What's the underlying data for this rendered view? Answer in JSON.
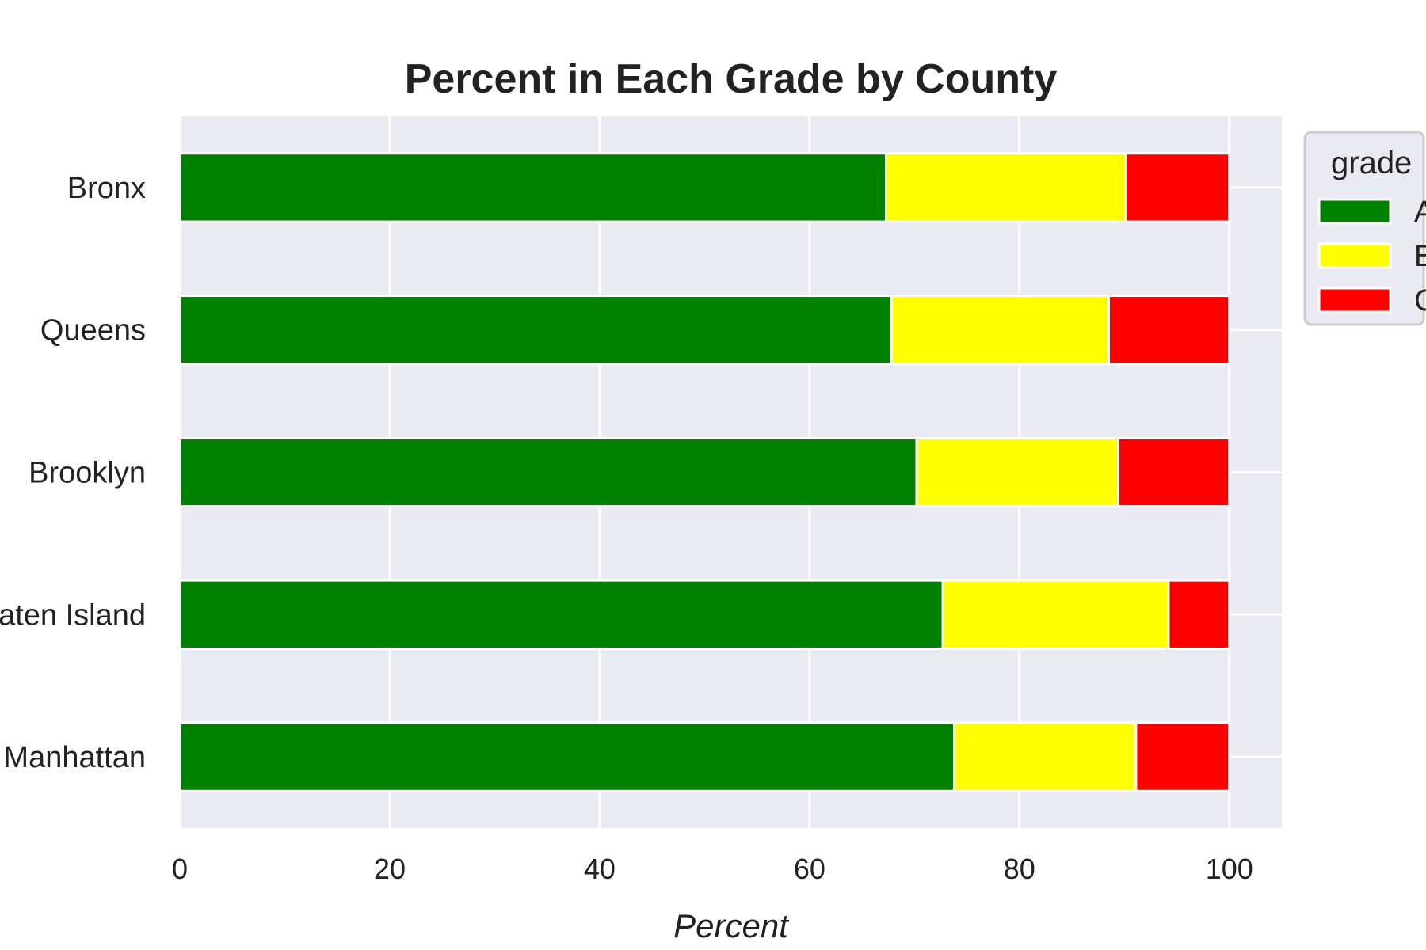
{
  "chart_data": {
    "type": "bar",
    "orientation": "horizontal",
    "stacked": true,
    "title": "Percent in Each Grade by County",
    "xlabel": "Percent",
    "ylabel": "",
    "xlim": [
      0,
      105
    ],
    "xticks": [
      "0",
      "20",
      "40",
      "60",
      "80",
      "100"
    ],
    "grid": true,
    "categories": [
      "Bronx",
      "Queens",
      "Brooklyn",
      "Staten Island",
      "Manhattan"
    ],
    "legend": {
      "title": "grade",
      "placement": "upper-right-outside"
    },
    "series": [
      {
        "name": "A",
        "color": "#008000",
        "values": [
          67.3,
          67.8,
          70.2,
          72.7,
          73.8
        ]
      },
      {
        "name": "B",
        "color": "#ffff00",
        "values": [
          22.8,
          20.7,
          19.2,
          21.5,
          17.3
        ]
      },
      {
        "name": "C",
        "color": "#ff0000",
        "values": [
          9.9,
          11.5,
          10.6,
          5.8,
          8.9
        ]
      }
    ]
  },
  "colors": {
    "plot_background": "#eaeaf2",
    "grid": "#ffffff",
    "text": "#222222"
  }
}
